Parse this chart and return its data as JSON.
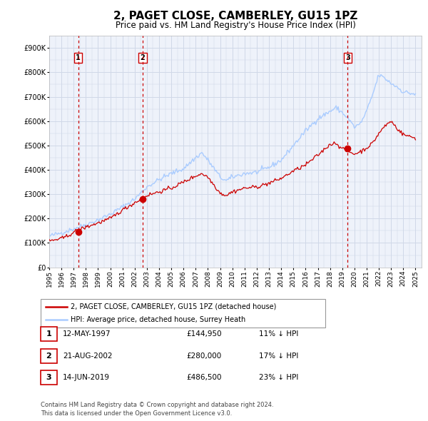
{
  "title": "2, PAGET CLOSE, CAMBERLEY, GU15 1PZ",
  "subtitle": "Price paid vs. HM Land Registry's House Price Index (HPI)",
  "title_fontsize": 11,
  "subtitle_fontsize": 8.5,
  "xlim": [
    1995.0,
    2025.5
  ],
  "ylim": [
    0,
    950000
  ],
  "yticks": [
    0,
    100000,
    200000,
    300000,
    400000,
    500000,
    600000,
    700000,
    800000,
    900000
  ],
  "ytick_labels": [
    "£0",
    "£100K",
    "£200K",
    "£300K",
    "£400K",
    "£500K",
    "£600K",
    "£700K",
    "£800K",
    "£900K"
  ],
  "xtick_years": [
    1995,
    1996,
    1997,
    1998,
    1999,
    2000,
    2001,
    2002,
    2003,
    2004,
    2005,
    2006,
    2007,
    2008,
    2009,
    2010,
    2011,
    2012,
    2013,
    2014,
    2015,
    2016,
    2017,
    2018,
    2019,
    2020,
    2021,
    2022,
    2023,
    2024,
    2025
  ],
  "sales_color": "#cc0000",
  "hpi_color": "#aaccff",
  "sale_dot_color": "#cc0000",
  "vline_color": "#cc0000",
  "grid_color": "#d0d8e8",
  "background_color": "#eef2fa",
  "sale_marker_size": 6,
  "transactions": [
    {
      "date_year": 1997.37,
      "price": 144950,
      "label": "1"
    },
    {
      "date_year": 2002.64,
      "price": 280000,
      "label": "2"
    },
    {
      "date_year": 2019.45,
      "price": 486500,
      "label": "3"
    }
  ],
  "legend_line1": "2, PAGET CLOSE, CAMBERLEY, GU15 1PZ (detached house)",
  "legend_line2": "HPI: Average price, detached house, Surrey Heath",
  "table_rows": [
    {
      "num": "1",
      "date": "12-MAY-1997",
      "price": "£144,950",
      "hpi": "11% ↓ HPI"
    },
    {
      "num": "2",
      "date": "21-AUG-2002",
      "price": "£280,000",
      "hpi": "17% ↓ HPI"
    },
    {
      "num": "3",
      "date": "14-JUN-2019",
      "price": "£486,500",
      "hpi": "23% ↓ HPI"
    }
  ],
  "footnote1": "Contains HM Land Registry data © Crown copyright and database right 2024.",
  "footnote2": "This data is licensed under the Open Government Licence v3.0."
}
